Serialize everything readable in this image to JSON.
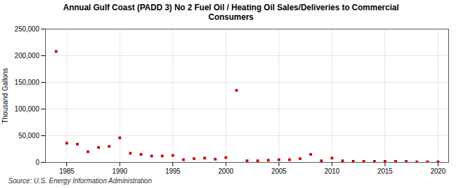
{
  "chart_data": {
    "type": "scatter",
    "title": "Annual Gulf Coast (PADD 3) No 2 Fuel Oil / Heating Oil Sales/Deliveries to Commercial\nConsumers",
    "y_label": "Thousand Gallons",
    "source": "Source: U.S. Energy Information Administration",
    "x": [
      1984,
      1985,
      1986,
      1987,
      1988,
      1989,
      1990,
      1991,
      1992,
      1993,
      1994,
      1995,
      1996,
      1997,
      1998,
      1999,
      2000,
      2001,
      2002,
      2003,
      2004,
      2005,
      2006,
      2007,
      2008,
      2009,
      2010,
      2011,
      2012,
      2013,
      2014,
      2015,
      2016,
      2017,
      2018,
      2019,
      2020
    ],
    "values": [
      208000,
      36000,
      34000,
      20000,
      28000,
      30000,
      46000,
      17000,
      15000,
      12000,
      12000,
      13000,
      5000,
      7000,
      8000,
      6000,
      9000,
      135000,
      3000,
      3000,
      4000,
      5000,
      5000,
      7000,
      15000,
      3000,
      8000,
      3000,
      2000,
      2000,
      2000,
      2000,
      2000,
      2000,
      1000,
      1000,
      1000
    ],
    "color": "#cc0000",
    "marker": "square",
    "xlim": [
      1983,
      2021
    ],
    "xticks": [
      1985,
      1990,
      1995,
      2000,
      2005,
      2010,
      2015,
      2020
    ],
    "ylim": [
      0,
      250000
    ],
    "yticks": [
      0,
      {
        "value": 50000,
        "label": "50,000"
      },
      {
        "value": 100000,
        "label": "100,000"
      },
      {
        "value": 150000,
        "label": "150,000"
      },
      {
        "value": 200000,
        "label": "200,000"
      },
      {
        "value": 250000,
        "label": "250,000"
      }
    ],
    "grid": true
  }
}
